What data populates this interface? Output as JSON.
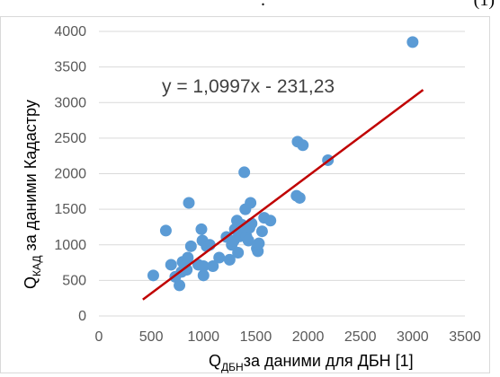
{
  "page": {
    "fragment_left": ".",
    "fragment_right": "(1)"
  },
  "chart_data": {
    "type": "scatter",
    "title": "",
    "xlabel_main": "Q",
    "xlabel_sub": "ДБН",
    "xlabel_rest": "за даними для ДБН [1]",
    "ylabel_main": "Q",
    "ylabel_sub": "КАД",
    "ylabel_rest": " за даними Кадастру",
    "xlim": [
      0,
      3500
    ],
    "ylim": [
      0,
      4000
    ],
    "xticks": [
      0,
      500,
      1000,
      1500,
      2000,
      2500,
      3000,
      3500
    ],
    "yticks": [
      0,
      500,
      1000,
      1500,
      2000,
      2500,
      3000,
      3500,
      4000
    ],
    "grid": "horizontal",
    "colors": {
      "points": "#5b9bd5",
      "trendline": "#c00000",
      "grid": "#d9d9d9"
    },
    "series": [
      {
        "points": [
          [
            520,
            570
          ],
          [
            640,
            1200
          ],
          [
            690,
            720
          ],
          [
            730,
            550
          ],
          [
            770,
            430
          ],
          [
            790,
            620
          ],
          [
            800,
            760
          ],
          [
            820,
            700
          ],
          [
            840,
            650
          ],
          [
            850,
            820
          ],
          [
            860,
            1590
          ],
          [
            880,
            980
          ],
          [
            950,
            720
          ],
          [
            980,
            1220
          ],
          [
            990,
            1060
          ],
          [
            1000,
            570
          ],
          [
            1000,
            700
          ],
          [
            1030,
            980
          ],
          [
            1060,
            1000
          ],
          [
            1090,
            700
          ],
          [
            1150,
            820
          ],
          [
            1220,
            1110
          ],
          [
            1250,
            790
          ],
          [
            1270,
            1000
          ],
          [
            1290,
            1060
          ],
          [
            1300,
            1220
          ],
          [
            1320,
            1340
          ],
          [
            1330,
            890
          ],
          [
            1350,
            1120
          ],
          [
            1370,
            1280
          ],
          [
            1380,
            1190
          ],
          [
            1390,
            2020
          ],
          [
            1400,
            1500
          ],
          [
            1410,
            1120
          ],
          [
            1430,
            1060
          ],
          [
            1440,
            1240
          ],
          [
            1450,
            1590
          ],
          [
            1460,
            1300
          ],
          [
            1510,
            950
          ],
          [
            1520,
            910
          ],
          [
            1530,
            1020
          ],
          [
            1560,
            1190
          ],
          [
            1580,
            1380
          ],
          [
            1640,
            1340
          ],
          [
            1890,
            1690
          ],
          [
            1900,
            2450
          ],
          [
            1920,
            1660
          ],
          [
            1950,
            2400
          ],
          [
            2190,
            2190
          ],
          [
            3000,
            3850
          ]
        ]
      }
    ],
    "trendline": {
      "slope": 1.0997,
      "intercept": -231.23,
      "x_range": [
        420,
        3100
      ],
      "equation": "y = 1,0997x - 231,23"
    }
  }
}
